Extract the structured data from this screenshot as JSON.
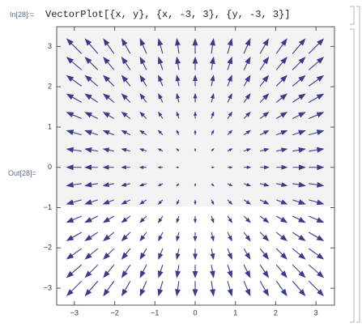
{
  "input_label": "In[28]:=",
  "input_code": "VectorPlot[{x, y}, {x, -3, 3}, {y, -3, 3}]",
  "output_label": "Out[28]=",
  "chart_data": {
    "type": "vector",
    "color": "#3b3b8e",
    "x": [
      -3,
      -2.571,
      -2.143,
      -1.714,
      -1.286,
      -0.857,
      -0.429,
      0,
      0.429,
      0.857,
      1.286,
      1.714,
      2.143,
      2.571,
      3
    ],
    "y": [
      -3,
      -2.571,
      -2.143,
      -1.714,
      -1.286,
      -0.857,
      -0.429,
      0,
      0.429,
      0.857,
      1.286,
      1.714,
      2.143,
      2.571,
      3
    ],
    "xlim": [
      -3.44,
      3.46
    ],
    "ylim": [
      -3.42,
      3.49
    ],
    "xticks": [
      {
        "value": -3,
        "label": "−3"
      },
      {
        "value": -2,
        "label": "−2"
      },
      {
        "value": -1,
        "label": "−1"
      },
      0,
      1,
      2,
      3
    ],
    "yticks": [
      {
        "value": -3,
        "label": "−3"
      },
      {
        "value": -2,
        "label": "−2"
      },
      {
        "value": -1,
        "label": "−1"
      },
      0,
      1,
      2,
      3
    ]
  }
}
